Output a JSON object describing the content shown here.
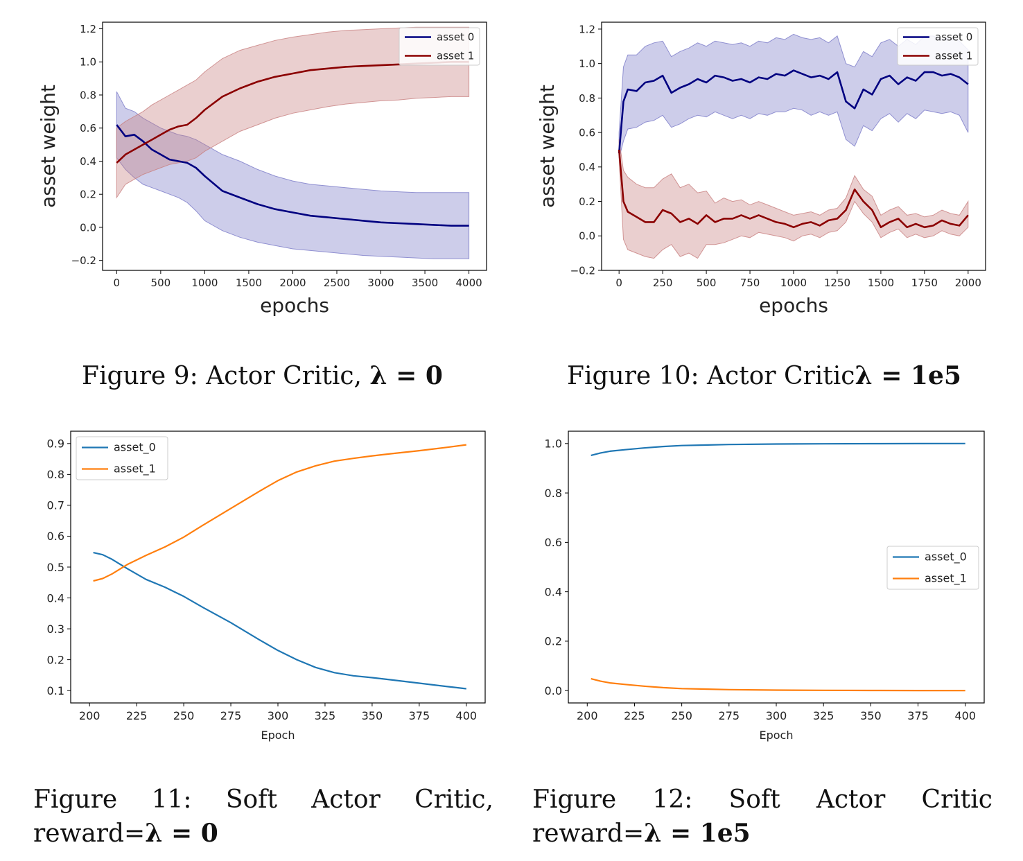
{
  "figures": [
    {
      "id": "fig9",
      "caption": {
        "prefix": "Figure 9:  Actor Critic, ",
        "math": "λ = 0"
      },
      "chart_data": {
        "type": "line",
        "title": "",
        "xlabel": "epochs",
        "ylabel": "asset weight",
        "xlim": [
          -160,
          4200
        ],
        "ylim": [
          -0.26,
          1.24
        ],
        "xticks": [
          0,
          500,
          1000,
          1500,
          2000,
          2500,
          3000,
          3500,
          4000
        ],
        "yticks": [
          -0.2,
          0.0,
          0.2,
          0.4,
          0.6,
          0.8,
          1.0,
          1.2
        ],
        "ytick_labels": [
          "−0.2",
          "0.0",
          "0.2",
          "0.4",
          "0.6",
          "0.8",
          "1.0",
          "1.2"
        ],
        "legend": "top-right",
        "grid": false,
        "series": [
          {
            "name": "asset 0",
            "color": "#000080",
            "band_color": "#7b7bc8",
            "x": [
              0,
              100,
              200,
              300,
              400,
              500,
              600,
              700,
              800,
              900,
              1000,
              1200,
              1400,
              1600,
              1800,
              2000,
              2200,
              2400,
              2600,
              2800,
              3000,
              3200,
              3400,
              3600,
              3800,
              4000
            ],
            "y": [
              0.62,
              0.55,
              0.56,
              0.52,
              0.47,
              0.44,
              0.41,
              0.4,
              0.39,
              0.36,
              0.31,
              0.22,
              0.18,
              0.14,
              0.11,
              0.09,
              0.07,
              0.06,
              0.05,
              0.04,
              0.03,
              0.025,
              0.02,
              0.015,
              0.01,
              0.01
            ],
            "lower": [
              0.42,
              0.35,
              0.3,
              0.26,
              0.24,
              0.22,
              0.2,
              0.18,
              0.15,
              0.1,
              0.04,
              -0.02,
              -0.06,
              -0.09,
              -0.11,
              -0.13,
              -0.14,
              -0.15,
              -0.16,
              -0.17,
              -0.175,
              -0.18,
              -0.185,
              -0.19,
              -0.19,
              -0.19
            ],
            "upper": [
              0.82,
              0.72,
              0.7,
              0.66,
              0.63,
              0.6,
              0.58,
              0.56,
              0.55,
              0.53,
              0.5,
              0.44,
              0.4,
              0.35,
              0.31,
              0.28,
              0.26,
              0.25,
              0.24,
              0.23,
              0.22,
              0.215,
              0.21,
              0.21,
              0.21,
              0.21
            ]
          },
          {
            "name": "asset 1",
            "color": "#8b0000",
            "band_color": "#c88080",
            "x": [
              0,
              100,
              200,
              300,
              400,
              500,
              600,
              700,
              800,
              900,
              1000,
              1200,
              1400,
              1600,
              1800,
              2000,
              2200,
              2400,
              2600,
              2800,
              3000,
              3200,
              3400,
              3600,
              3800,
              4000
            ],
            "y": [
              0.39,
              0.44,
              0.47,
              0.5,
              0.53,
              0.56,
              0.59,
              0.61,
              0.62,
              0.66,
              0.71,
              0.79,
              0.84,
              0.88,
              0.91,
              0.93,
              0.95,
              0.96,
              0.97,
              0.975,
              0.98,
              0.985,
              0.99,
              0.995,
              1.0,
              1.0
            ],
            "lower": [
              0.18,
              0.26,
              0.29,
              0.32,
              0.34,
              0.36,
              0.38,
              0.39,
              0.4,
              0.42,
              0.46,
              0.52,
              0.58,
              0.62,
              0.66,
              0.69,
              0.71,
              0.73,
              0.745,
              0.755,
              0.765,
              0.77,
              0.78,
              0.785,
              0.79,
              0.79
            ],
            "upper": [
              0.6,
              0.64,
              0.67,
              0.7,
              0.74,
              0.77,
              0.8,
              0.83,
              0.86,
              0.89,
              0.94,
              1.02,
              1.07,
              1.1,
              1.13,
              1.15,
              1.165,
              1.18,
              1.19,
              1.195,
              1.2,
              1.205,
              1.21,
              1.21,
              1.21,
              1.21
            ]
          }
        ]
      }
    },
    {
      "id": "fig10",
      "caption": {
        "prefix": "Figure 10:  Actor Critic",
        "math": "λ = 1e5"
      },
      "chart_data": {
        "type": "line",
        "title": "",
        "xlabel": "epochs",
        "ylabel": "asset weight",
        "xlim": [
          -100,
          2100
        ],
        "ylim": [
          -0.2,
          1.24
        ],
        "xticks": [
          0,
          250,
          500,
          750,
          1000,
          1250,
          1500,
          1750,
          2000
        ],
        "yticks": [
          -0.2,
          0.0,
          0.2,
          0.4,
          0.6,
          0.8,
          1.0,
          1.2
        ],
        "ytick_labels": [
          "−0.2",
          "0.0",
          "0.2",
          "0.4",
          "0.6",
          "0.8",
          "1.0",
          "1.2"
        ],
        "legend": "top-right",
        "grid": false,
        "series": [
          {
            "name": "asset 0",
            "color": "#000080",
            "band_color": "#7b7bc8",
            "x": [
              0,
              25,
              50,
              100,
              150,
              200,
              250,
              300,
              350,
              400,
              450,
              500,
              550,
              600,
              650,
              700,
              750,
              800,
              850,
              900,
              950,
              1000,
              1050,
              1100,
              1150,
              1200,
              1250,
              1300,
              1350,
              1400,
              1450,
              1500,
              1550,
              1600,
              1650,
              1700,
              1750,
              1800,
              1850,
              1900,
              1950,
              2000
            ],
            "y": [
              0.48,
              0.78,
              0.85,
              0.84,
              0.89,
              0.9,
              0.93,
              0.83,
              0.86,
              0.88,
              0.91,
              0.89,
              0.93,
              0.92,
              0.9,
              0.91,
              0.89,
              0.92,
              0.91,
              0.94,
              0.93,
              0.96,
              0.94,
              0.92,
              0.93,
              0.91,
              0.95,
              0.78,
              0.74,
              0.85,
              0.82,
              0.91,
              0.93,
              0.88,
              0.92,
              0.9,
              0.95,
              0.95,
              0.93,
              0.94,
              0.92,
              0.88
            ],
            "lower": [
              0.45,
              0.55,
              0.62,
              0.63,
              0.66,
              0.67,
              0.7,
              0.63,
              0.65,
              0.68,
              0.7,
              0.69,
              0.72,
              0.7,
              0.68,
              0.7,
              0.68,
              0.71,
              0.7,
              0.72,
              0.72,
              0.74,
              0.73,
              0.7,
              0.72,
              0.7,
              0.72,
              0.56,
              0.52,
              0.64,
              0.61,
              0.68,
              0.71,
              0.66,
              0.71,
              0.68,
              0.73,
              0.72,
              0.71,
              0.72,
              0.7,
              0.6
            ],
            "upper": [
              0.6,
              0.98,
              1.05,
              1.05,
              1.1,
              1.12,
              1.13,
              1.04,
              1.07,
              1.09,
              1.12,
              1.1,
              1.13,
              1.12,
              1.11,
              1.12,
              1.1,
              1.13,
              1.12,
              1.15,
              1.14,
              1.17,
              1.15,
              1.14,
              1.15,
              1.12,
              1.16,
              1.0,
              0.98,
              1.07,
              1.04,
              1.12,
              1.14,
              1.1,
              1.14,
              1.11,
              1.16,
              1.16,
              1.14,
              1.15,
              1.13,
              1.08
            ]
          },
          {
            "name": "asset 1",
            "color": "#8b0000",
            "band_color": "#c88080",
            "x": [
              0,
              25,
              50,
              100,
              150,
              200,
              250,
              300,
              350,
              400,
              450,
              500,
              550,
              600,
              650,
              700,
              750,
              800,
              850,
              900,
              950,
              1000,
              1050,
              1100,
              1150,
              1200,
              1250,
              1300,
              1350,
              1400,
              1450,
              1500,
              1550,
              1600,
              1650,
              1700,
              1750,
              1800,
              1850,
              1900,
              1950,
              2000
            ],
            "y": [
              0.5,
              0.2,
              0.14,
              0.11,
              0.08,
              0.08,
              0.15,
              0.13,
              0.08,
              0.1,
              0.07,
              0.12,
              0.08,
              0.1,
              0.1,
              0.12,
              0.1,
              0.12,
              0.1,
              0.08,
              0.07,
              0.05,
              0.07,
              0.08,
              0.06,
              0.09,
              0.1,
              0.15,
              0.27,
              0.2,
              0.15,
              0.05,
              0.08,
              0.1,
              0.05,
              0.07,
              0.05,
              0.06,
              0.09,
              0.07,
              0.06,
              0.12
            ],
            "lower": [
              0.45,
              -0.02,
              -0.08,
              -0.1,
              -0.12,
              -0.13,
              -0.08,
              -0.05,
              -0.12,
              -0.1,
              -0.13,
              -0.05,
              -0.05,
              -0.04,
              -0.02,
              0.0,
              -0.01,
              0.02,
              0.01,
              0.0,
              -0.01,
              -0.03,
              0.0,
              0.01,
              -0.01,
              0.02,
              0.03,
              0.08,
              0.2,
              0.13,
              0.08,
              -0.01,
              0.02,
              0.04,
              -0.01,
              0.01,
              -0.01,
              0.0,
              0.03,
              0.01,
              0.0,
              0.05
            ],
            "upper": [
              0.56,
              0.38,
              0.34,
              0.3,
              0.28,
              0.28,
              0.33,
              0.36,
              0.28,
              0.3,
              0.25,
              0.26,
              0.19,
              0.22,
              0.2,
              0.21,
              0.18,
              0.2,
              0.18,
              0.16,
              0.14,
              0.12,
              0.13,
              0.14,
              0.12,
              0.15,
              0.16,
              0.22,
              0.35,
              0.27,
              0.23,
              0.12,
              0.15,
              0.17,
              0.12,
              0.13,
              0.11,
              0.12,
              0.15,
              0.13,
              0.12,
              0.2
            ]
          }
        ]
      }
    },
    {
      "id": "fig11",
      "caption": {
        "words": [
          "Figure",
          "11:",
          "Soft",
          "Actor",
          "Critic,"
        ],
        "line2_prefix": "reward=",
        "math": "λ = 0"
      },
      "chart_data": {
        "type": "line",
        "title": "",
        "xlabel": "Epoch",
        "ylabel": "",
        "xlim": [
          190,
          410
        ],
        "ylim": [
          0.06,
          0.94
        ],
        "xticks": [
          200,
          225,
          250,
          275,
          300,
          325,
          350,
          375,
          400
        ],
        "yticks": [
          0.1,
          0.2,
          0.3,
          0.4,
          0.5,
          0.6,
          0.7,
          0.8,
          0.9
        ],
        "ytick_labels": [
          "0.1",
          "0.2",
          "0.3",
          "0.4",
          "0.5",
          "0.6",
          "0.7",
          "0.8",
          "0.9"
        ],
        "legend": "top-left",
        "grid": false,
        "series": [
          {
            "name": "asset_0",
            "color": "#1f77b4",
            "x": [
              202,
              207,
              212,
              220,
              230,
              240,
              250,
              260,
              275,
              290,
              300,
              310,
              320,
              330,
              340,
              350,
              360,
              375,
              390,
              400
            ],
            "y": [
              0.547,
              0.54,
              0.525,
              0.495,
              0.46,
              0.435,
              0.405,
              0.37,
              0.32,
              0.265,
              0.23,
              0.2,
              0.175,
              0.158,
              0.148,
              0.142,
              0.135,
              0.124,
              0.113,
              0.106
            ]
          },
          {
            "name": "asset_1",
            "color": "#ff7f0e",
            "x": [
              202,
              207,
              212,
              220,
              230,
              240,
              250,
              260,
              275,
              290,
              300,
              310,
              320,
              330,
              340,
              350,
              360,
              375,
              390,
              400
            ],
            "y": [
              0.455,
              0.463,
              0.478,
              0.508,
              0.538,
              0.565,
              0.597,
              0.635,
              0.69,
              0.745,
              0.78,
              0.808,
              0.828,
              0.843,
              0.852,
              0.86,
              0.867,
              0.877,
              0.888,
              0.896
            ]
          }
        ]
      }
    },
    {
      "id": "fig12",
      "caption": {
        "words": [
          "Figure",
          "12:",
          "Soft",
          "Actor",
          "Critic"
        ],
        "line2_prefix": "reward=",
        "math": "λ = 1e5"
      },
      "chart_data": {
        "type": "line",
        "title": "",
        "xlabel": "Epoch",
        "ylabel": "",
        "xlim": [
          190,
          410
        ],
        "ylim": [
          -0.05,
          1.05
        ],
        "xticks": [
          200,
          225,
          250,
          275,
          300,
          325,
          350,
          375,
          400
        ],
        "yticks": [
          0.0,
          0.2,
          0.4,
          0.6,
          0.8,
          1.0
        ],
        "ytick_labels": [
          "0.0",
          "0.2",
          "0.4",
          "0.6",
          "0.8",
          "1.0"
        ],
        "legend": "center-right",
        "grid": false,
        "series": [
          {
            "name": "asset_0",
            "color": "#1f77b4",
            "x": [
              202,
              207,
              212,
              220,
              230,
              240,
              250,
              275,
              300,
              325,
              350,
              375,
              400
            ],
            "y": [
              0.952,
              0.962,
              0.969,
              0.975,
              0.982,
              0.988,
              0.992,
              0.996,
              0.998,
              0.999,
              0.9995,
              0.9998,
              1.0
            ]
          },
          {
            "name": "asset_1",
            "color": "#ff7f0e",
            "x": [
              202,
              207,
              212,
              220,
              230,
              240,
              250,
              275,
              300,
              325,
              350,
              375,
              400
            ],
            "y": [
              0.048,
              0.038,
              0.031,
              0.025,
              0.018,
              0.012,
              0.008,
              0.004,
              0.002,
              0.001,
              0.0005,
              0.0002,
              0.0
            ]
          }
        ]
      }
    }
  ]
}
